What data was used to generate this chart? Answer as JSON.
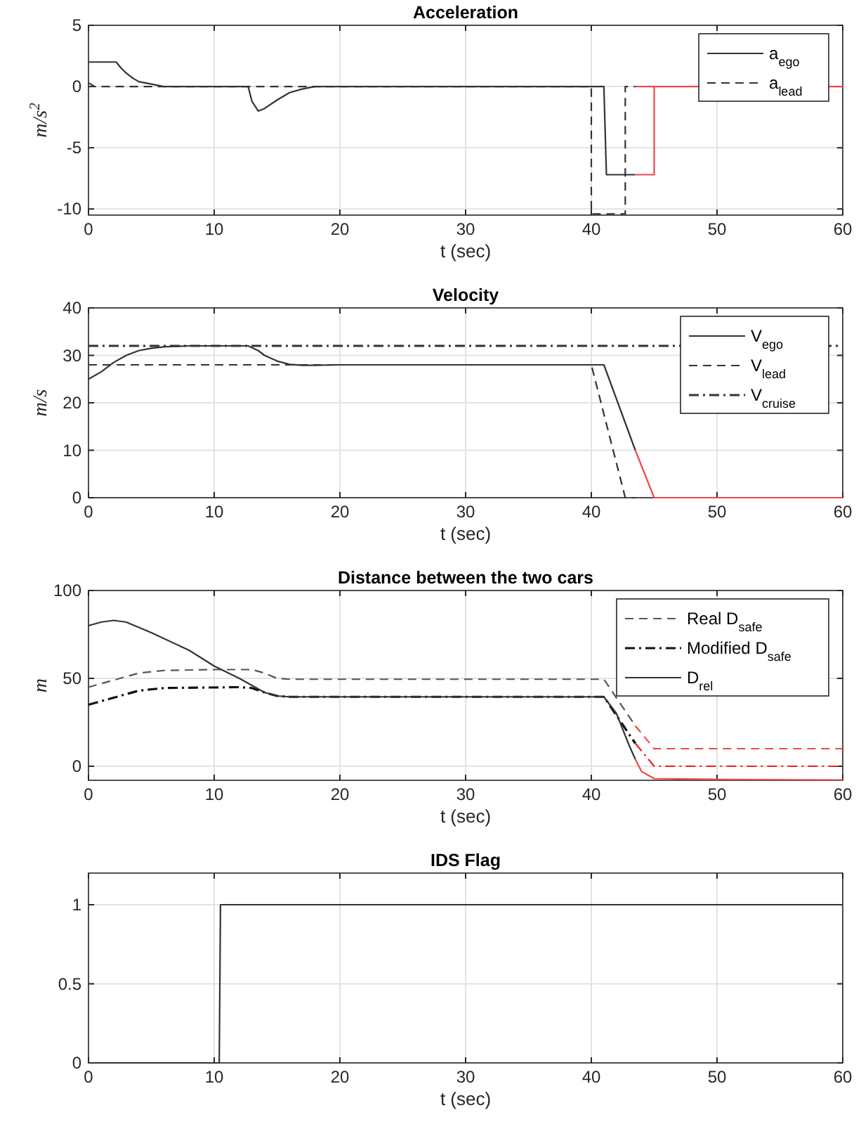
{
  "chart_data": [
    {
      "type": "line",
      "title": "Acceleration",
      "xlabel": "t (sec)",
      "ylabel": "m/s$^{2}$",
      "xlim": [
        0,
        60
      ],
      "xticks": [
        0,
        10,
        20,
        30,
        40,
        50,
        60
      ],
      "ylim": [
        -10.5,
        5
      ],
      "yticks": [
        -10,
        -5,
        0,
        5
      ],
      "grid": true,
      "legend": "top right",
      "series": [
        {
          "name": "a$_{ego}$",
          "color": "#333333",
          "line_style": "solid",
          "x": [
            0,
            2.2,
            2.6,
            3,
            3.5,
            4,
            5,
            6,
            7,
            8,
            12.7,
            13,
            13.5,
            14,
            15,
            16,
            17,
            18,
            20,
            41,
            41.2,
            43.5
          ],
          "values": [
            2,
            2,
            1.5,
            1.1,
            0.7,
            0.4,
            0.2,
            0,
            0,
            0,
            0,
            -1.2,
            -2,
            -1.8,
            -1.1,
            -0.5,
            -0.2,
            0,
            0,
            0,
            -7.2,
            -7.2
          ]
        },
        {
          "name": "a$_{lead}$",
          "color": "#333333",
          "line_style": "dashed",
          "x": [
            0,
            0.5,
            40,
            40,
            42.7,
            42.7,
            43.5
          ],
          "values": [
            0.3,
            0,
            0,
            -10.4,
            -10.4,
            0,
            0
          ]
        },
        {
          "color": "#f04848",
          "line_style": "solid",
          "x": [
            43.5,
            45,
            45,
            60
          ],
          "values": [
            -7.2,
            -7.2,
            0,
            0
          ]
        },
        {
          "color": "#f04848",
          "line_style": "solid",
          "x": [
            43.5,
            45
          ],
          "values": [
            0,
            0
          ]
        }
      ]
    },
    {
      "type": "line",
      "title": "Velocity",
      "xlabel": "t (sec)",
      "ylabel": "m/s",
      "xlim": [
        0,
        60
      ],
      "xticks": [
        0,
        10,
        20,
        30,
        40,
        50,
        60
      ],
      "ylim": [
        0,
        40
      ],
      "yticks": [
        0,
        10,
        20,
        30,
        40
      ],
      "grid": true,
      "legend": "top right",
      "series": [
        {
          "name": "V$_{ego}$",
          "color": "#333333",
          "line_style": "solid",
          "x": [
            0,
            1,
            2,
            3,
            4,
            5,
            6,
            8,
            12.7,
            13.5,
            14,
            15,
            16,
            17,
            18,
            20,
            41,
            43.5
          ],
          "values": [
            25,
            26.5,
            28.5,
            30,
            31,
            31.5,
            31.8,
            32,
            32,
            31,
            30,
            28.8,
            28.1,
            27.9,
            27.9,
            28,
            28,
            10
          ]
        },
        {
          "name": "V$_{lead}$",
          "color": "#333333",
          "line_style": "dashed",
          "x": [
            0,
            40,
            42.7,
            43.5
          ],
          "values": [
            28,
            28,
            0,
            0
          ]
        },
        {
          "name": "V$_{cruise}$",
          "color": "#333333",
          "line_style": "dashdot",
          "x": [
            0,
            60
          ],
          "values": [
            32,
            32
          ]
        },
        {
          "color": "#f04848",
          "line_style": "solid",
          "x": [
            43.5,
            45,
            60
          ],
          "values": [
            10,
            0,
            0
          ]
        }
      ]
    },
    {
      "type": "line",
      "title": "Distance between the two cars",
      "ylabel": "m",
      "xlabel": "t (sec)",
      "xlim": [
        0,
        60
      ],
      "xticks": [
        0,
        10,
        20,
        30,
        40,
        50,
        60
      ],
      "ylim": [
        -8,
        100
      ],
      "yticks": [
        0,
        50,
        100
      ],
      "grid": true,
      "legend": "top right",
      "series": [
        {
          "name": "Real D$_{safe}$",
          "color": "#555555",
          "line_style": "dashed",
          "x": [
            0,
            2,
            4,
            6,
            10,
            13,
            14,
            15,
            16,
            41,
            43.5
          ],
          "values": [
            45,
            49,
            53,
            54.5,
            55,
            55,
            53,
            50,
            49.5,
            49.5,
            23
          ]
        },
        {
          "name": "Modified D$_{safe}$",
          "color": "#111111",
          "line_style": "dashdot",
          "x": [
            0,
            2,
            4,
            6,
            12,
            13,
            14,
            15,
            16,
            41,
            43.5
          ],
          "values": [
            35,
            39,
            43,
            44.5,
            45,
            44.5,
            42,
            40,
            39.5,
            39.5,
            13
          ]
        },
        {
          "name": "D$_{rel}$",
          "color": "#333333",
          "line_style": "solid",
          "x": [
            0,
            1,
            2,
            3,
            5,
            8,
            10,
            12,
            13,
            14,
            15,
            16,
            18,
            41,
            42,
            43,
            43.5
          ],
          "values": [
            80,
            82,
            83,
            82,
            76,
            66,
            57,
            50,
            46,
            42,
            40,
            39.5,
            39.5,
            39.5,
            30,
            12,
            4
          ]
        },
        {
          "color": "#f04848",
          "line_style": "dashed",
          "x": [
            43.5,
            45,
            60
          ],
          "values": [
            23,
            10,
            10
          ]
        },
        {
          "color": "#e82020",
          "line_style": "dashdot",
          "x": [
            43.5,
            45,
            60
          ],
          "values": [
            13,
            0,
            0
          ]
        },
        {
          "color": "#f04848",
          "line_style": "solid",
          "x": [
            43.5,
            44,
            45,
            50,
            60
          ],
          "values": [
            4,
            -3,
            -7,
            -7.5,
            -7.8
          ]
        }
      ]
    },
    {
      "type": "line",
      "title": "IDS Flag",
      "xlabel": "t (sec)",
      "xlim": [
        0,
        60
      ],
      "xticks": [
        0,
        10,
        20,
        30,
        40,
        50,
        60
      ],
      "ylim": [
        0,
        1.2
      ],
      "yticks": [
        0,
        0.5,
        1
      ],
      "grid": true,
      "series": [
        {
          "color": "#333333",
          "line_style": "solid",
          "x": [
            0,
            10.4,
            10.5,
            60
          ],
          "values": [
            0,
            0,
            1,
            1
          ]
        }
      ]
    }
  ]
}
